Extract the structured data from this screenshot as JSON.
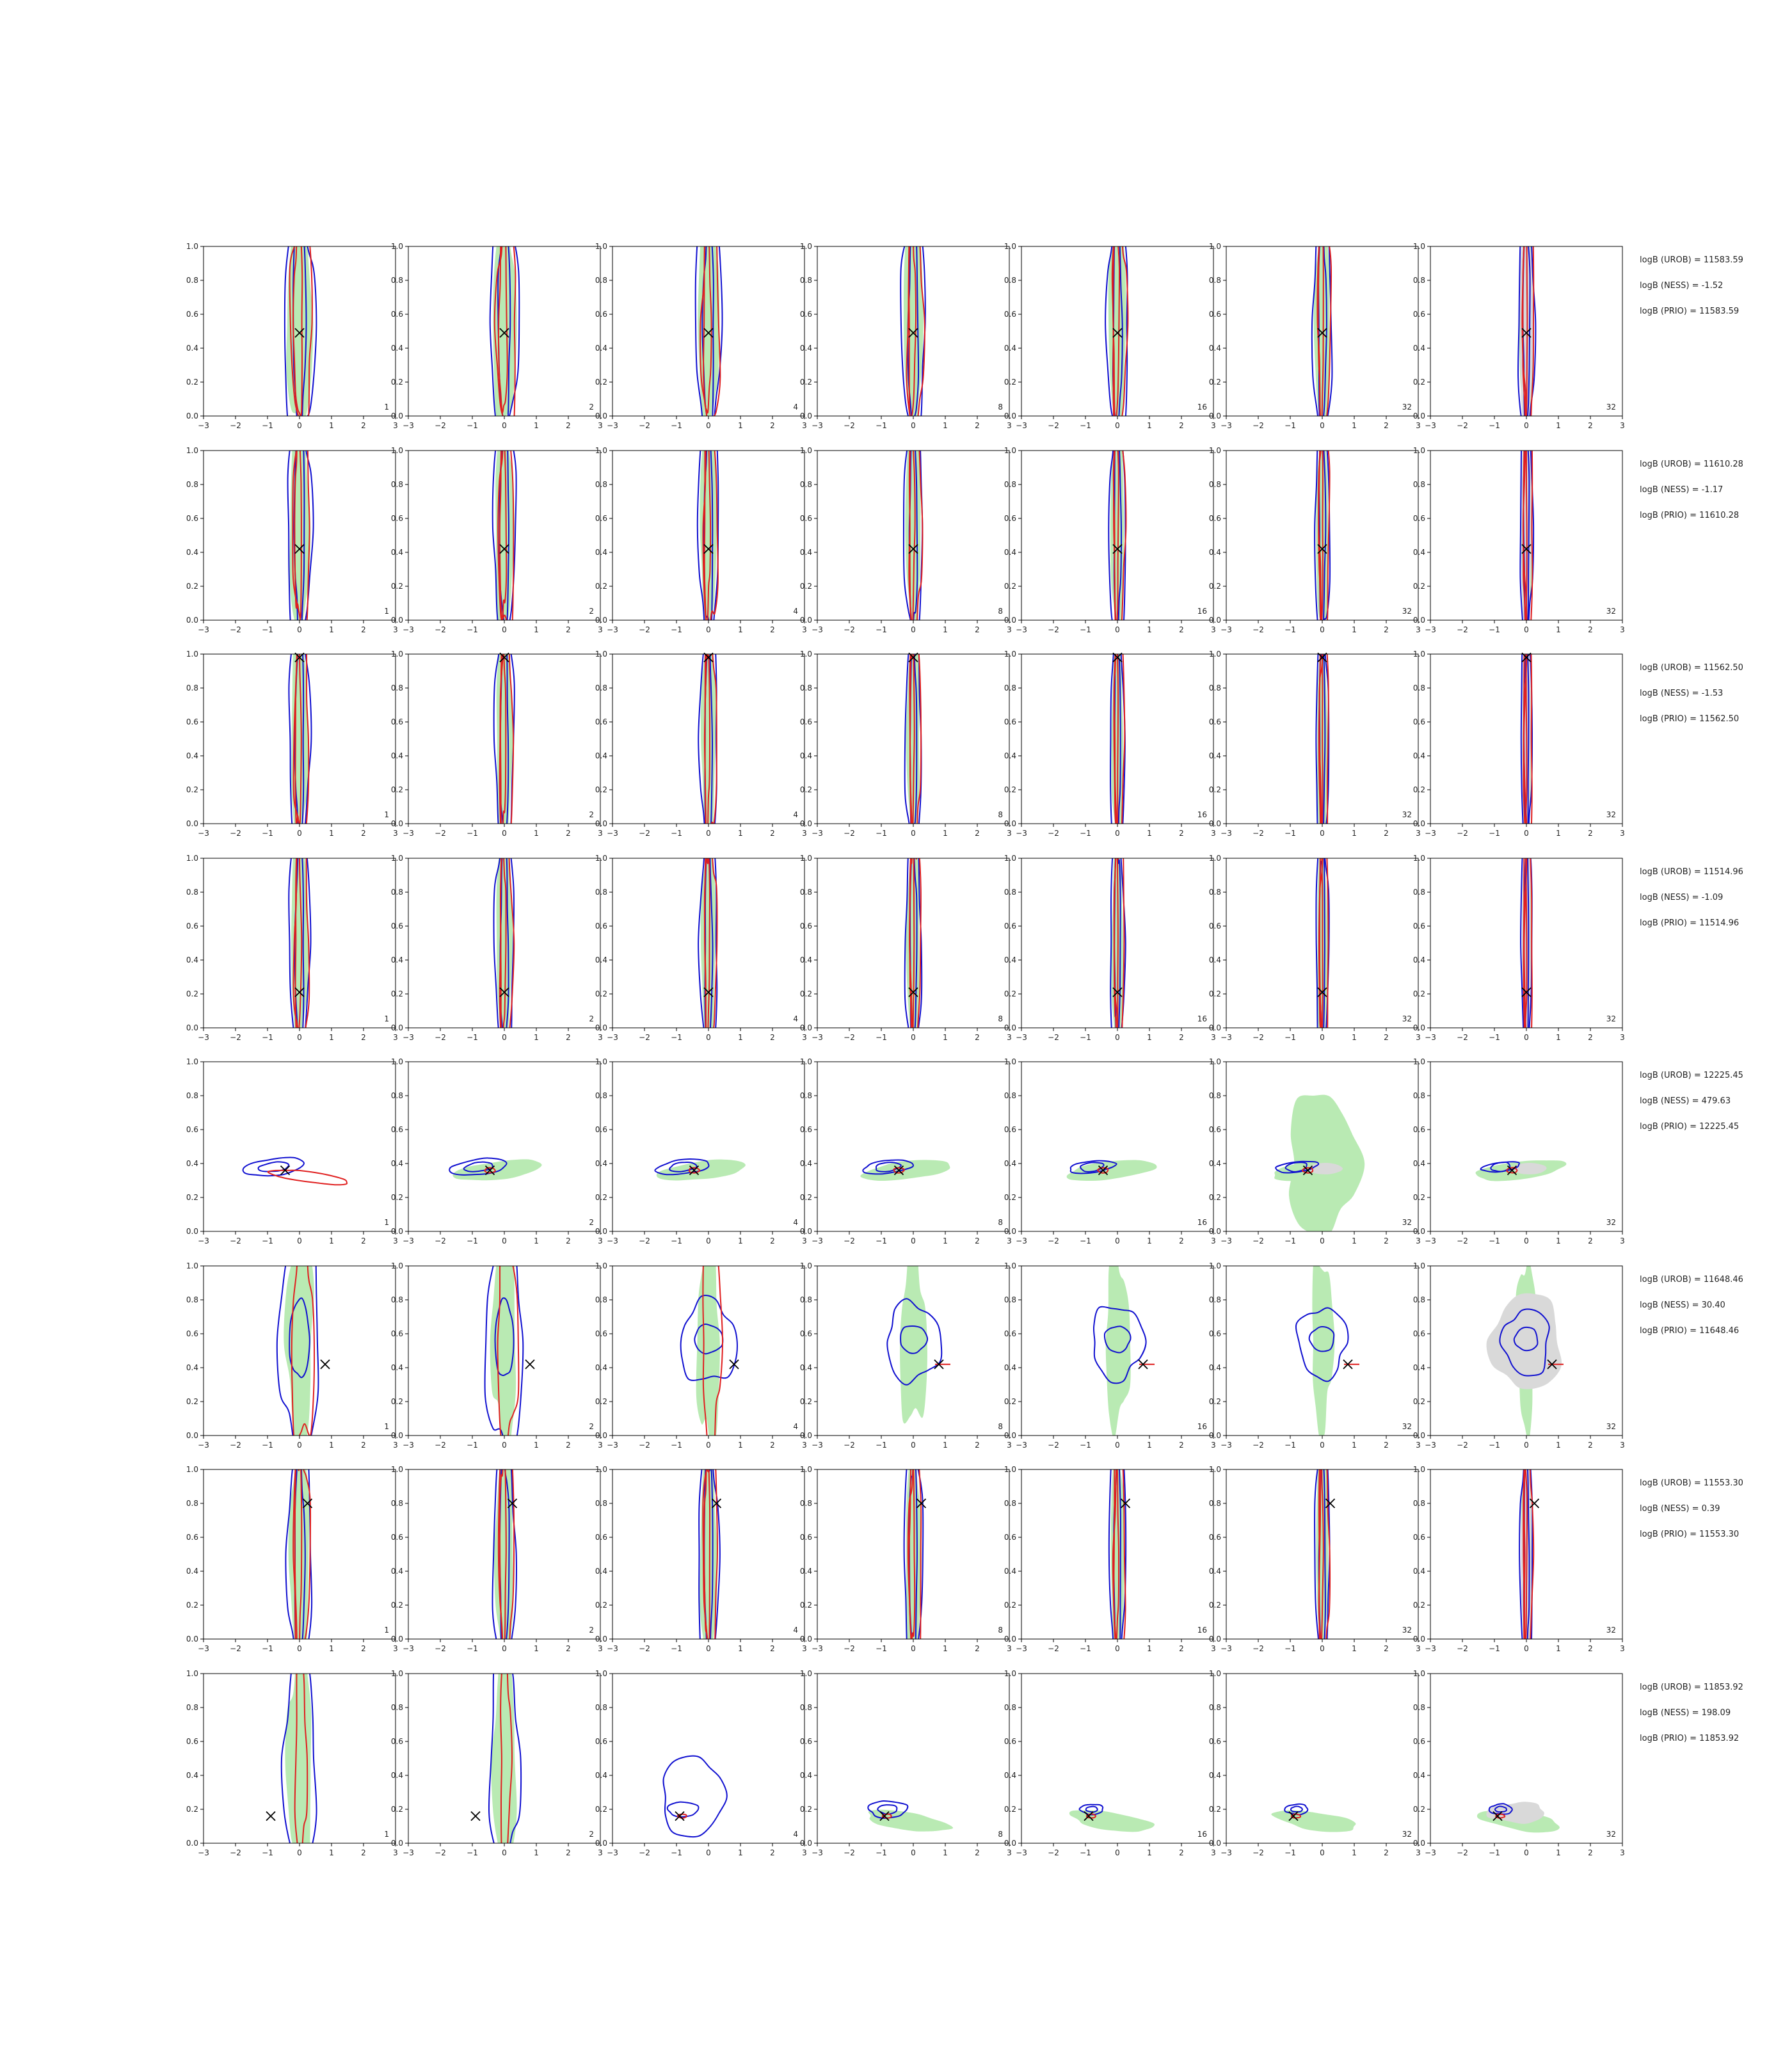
{
  "figure": {
    "colors": {
      "fill_green": "#b9eab3",
      "fill_gray": "#d9d9d9",
      "contour_red": "#e02020",
      "contour_blue": "#1010d0",
      "marker": "#000000",
      "axis": "#000000"
    },
    "xlim": [
      -3,
      3
    ],
    "ylim": [
      0,
      1
    ],
    "xticks": [
      "−3",
      "−2",
      "−1",
      "0",
      "1",
      "2",
      "3"
    ],
    "yticks": [
      "0.0",
      "0.2",
      "0.4",
      "0.6",
      "0.8",
      "1.0"
    ],
    "corner_labels": [
      "1",
      "2",
      "4",
      "8",
      "16",
      "32",
      "32"
    ]
  },
  "chart_data": {
    "type": "scatter",
    "description_of_panels": "8 rows × 7 columns of 2D density contour panels; black × marks the true value in each panel",
    "rows": [
      {
        "marker": [
          0.0,
          0.49
        ],
        "logB": [
          "logB (UROB) = 11583.59",
          "logB (NESS) = -1.52",
          "logB (PRIO) = 11583.59"
        ],
        "shape": "vertical",
        "blue_center": [
          0.0,
          0.55
        ],
        "width": 0.45
      },
      {
        "marker": [
          0.0,
          0.42
        ],
        "logB": [
          "logB (UROB) = 11610.28",
          "logB (NESS) = -1.17",
          "logB (PRIO) = 11610.28"
        ],
        "shape": "vertical",
        "blue_center": [
          0.0,
          0.55
        ],
        "width": 0.35
      },
      {
        "marker": [
          0.0,
          0.98
        ],
        "logB": [
          "logB (UROB) = 11562.50",
          "logB (NESS) = -1.53",
          "logB (PRIO) = 11562.50"
        ],
        "shape": "vertical",
        "blue_center": [
          0.0,
          0.5
        ],
        "width": 0.3
      },
      {
        "marker": [
          0.0,
          0.21
        ],
        "logB": [
          "logB (UROB) = 11514.96",
          "logB (NESS) = -1.09",
          "logB (PRIO) = 11514.96"
        ],
        "shape": "vertical",
        "blue_center": [
          0.0,
          0.5
        ],
        "width": 0.3
      },
      {
        "marker": [
          -0.45,
          0.36
        ],
        "logB": [
          "logB (UROB) = 12225.45",
          "logB (NESS) = 479.63",
          "logB (PRIO) = 12225.45"
        ],
        "shape": "tilted",
        "blue_center": [
          -0.8,
          0.38
        ],
        "width": 0.6
      },
      {
        "marker": [
          0.8,
          0.42
        ],
        "logB": [
          "logB (UROB) = 11648.46",
          "logB (NESS) = 30.40",
          "logB (PRIO) = 11648.46"
        ],
        "shape": "blob",
        "blue_center": [
          0.0,
          0.55
        ],
        "width": 0.7
      },
      {
        "marker": [
          0.25,
          0.8
        ],
        "logB": [
          "logB (UROB) = 11553.30",
          "logB (NESS) = 0.39",
          "logB (PRIO) = 11553.30"
        ],
        "shape": "vertical",
        "blue_center": [
          0.0,
          0.5
        ],
        "width": 0.35
      },
      {
        "marker": [
          -0.9,
          0.16
        ],
        "logB": [
          "logB (UROB) = 11853.92",
          "logB (NESS) = 198.09",
          "logB (PRIO) = 11853.92"
        ],
        "shape": "small",
        "blue_center": [
          -0.8,
          0.2
        ],
        "width": 0.5
      }
    ]
  }
}
